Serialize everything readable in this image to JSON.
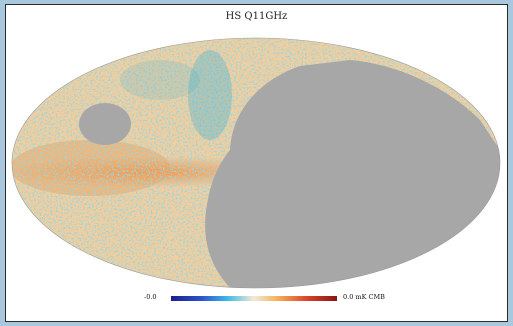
{
  "figure": {
    "title": "HS Q11GHz",
    "colorbar": {
      "min_label": "-0.0",
      "max_label": "0.0 mK CMB"
    },
    "colors": {
      "masked": "#a7a7a7",
      "warm": "#f0a45a",
      "cool": "#3fb1d8",
      "background": "#a9c7dd"
    }
  }
}
